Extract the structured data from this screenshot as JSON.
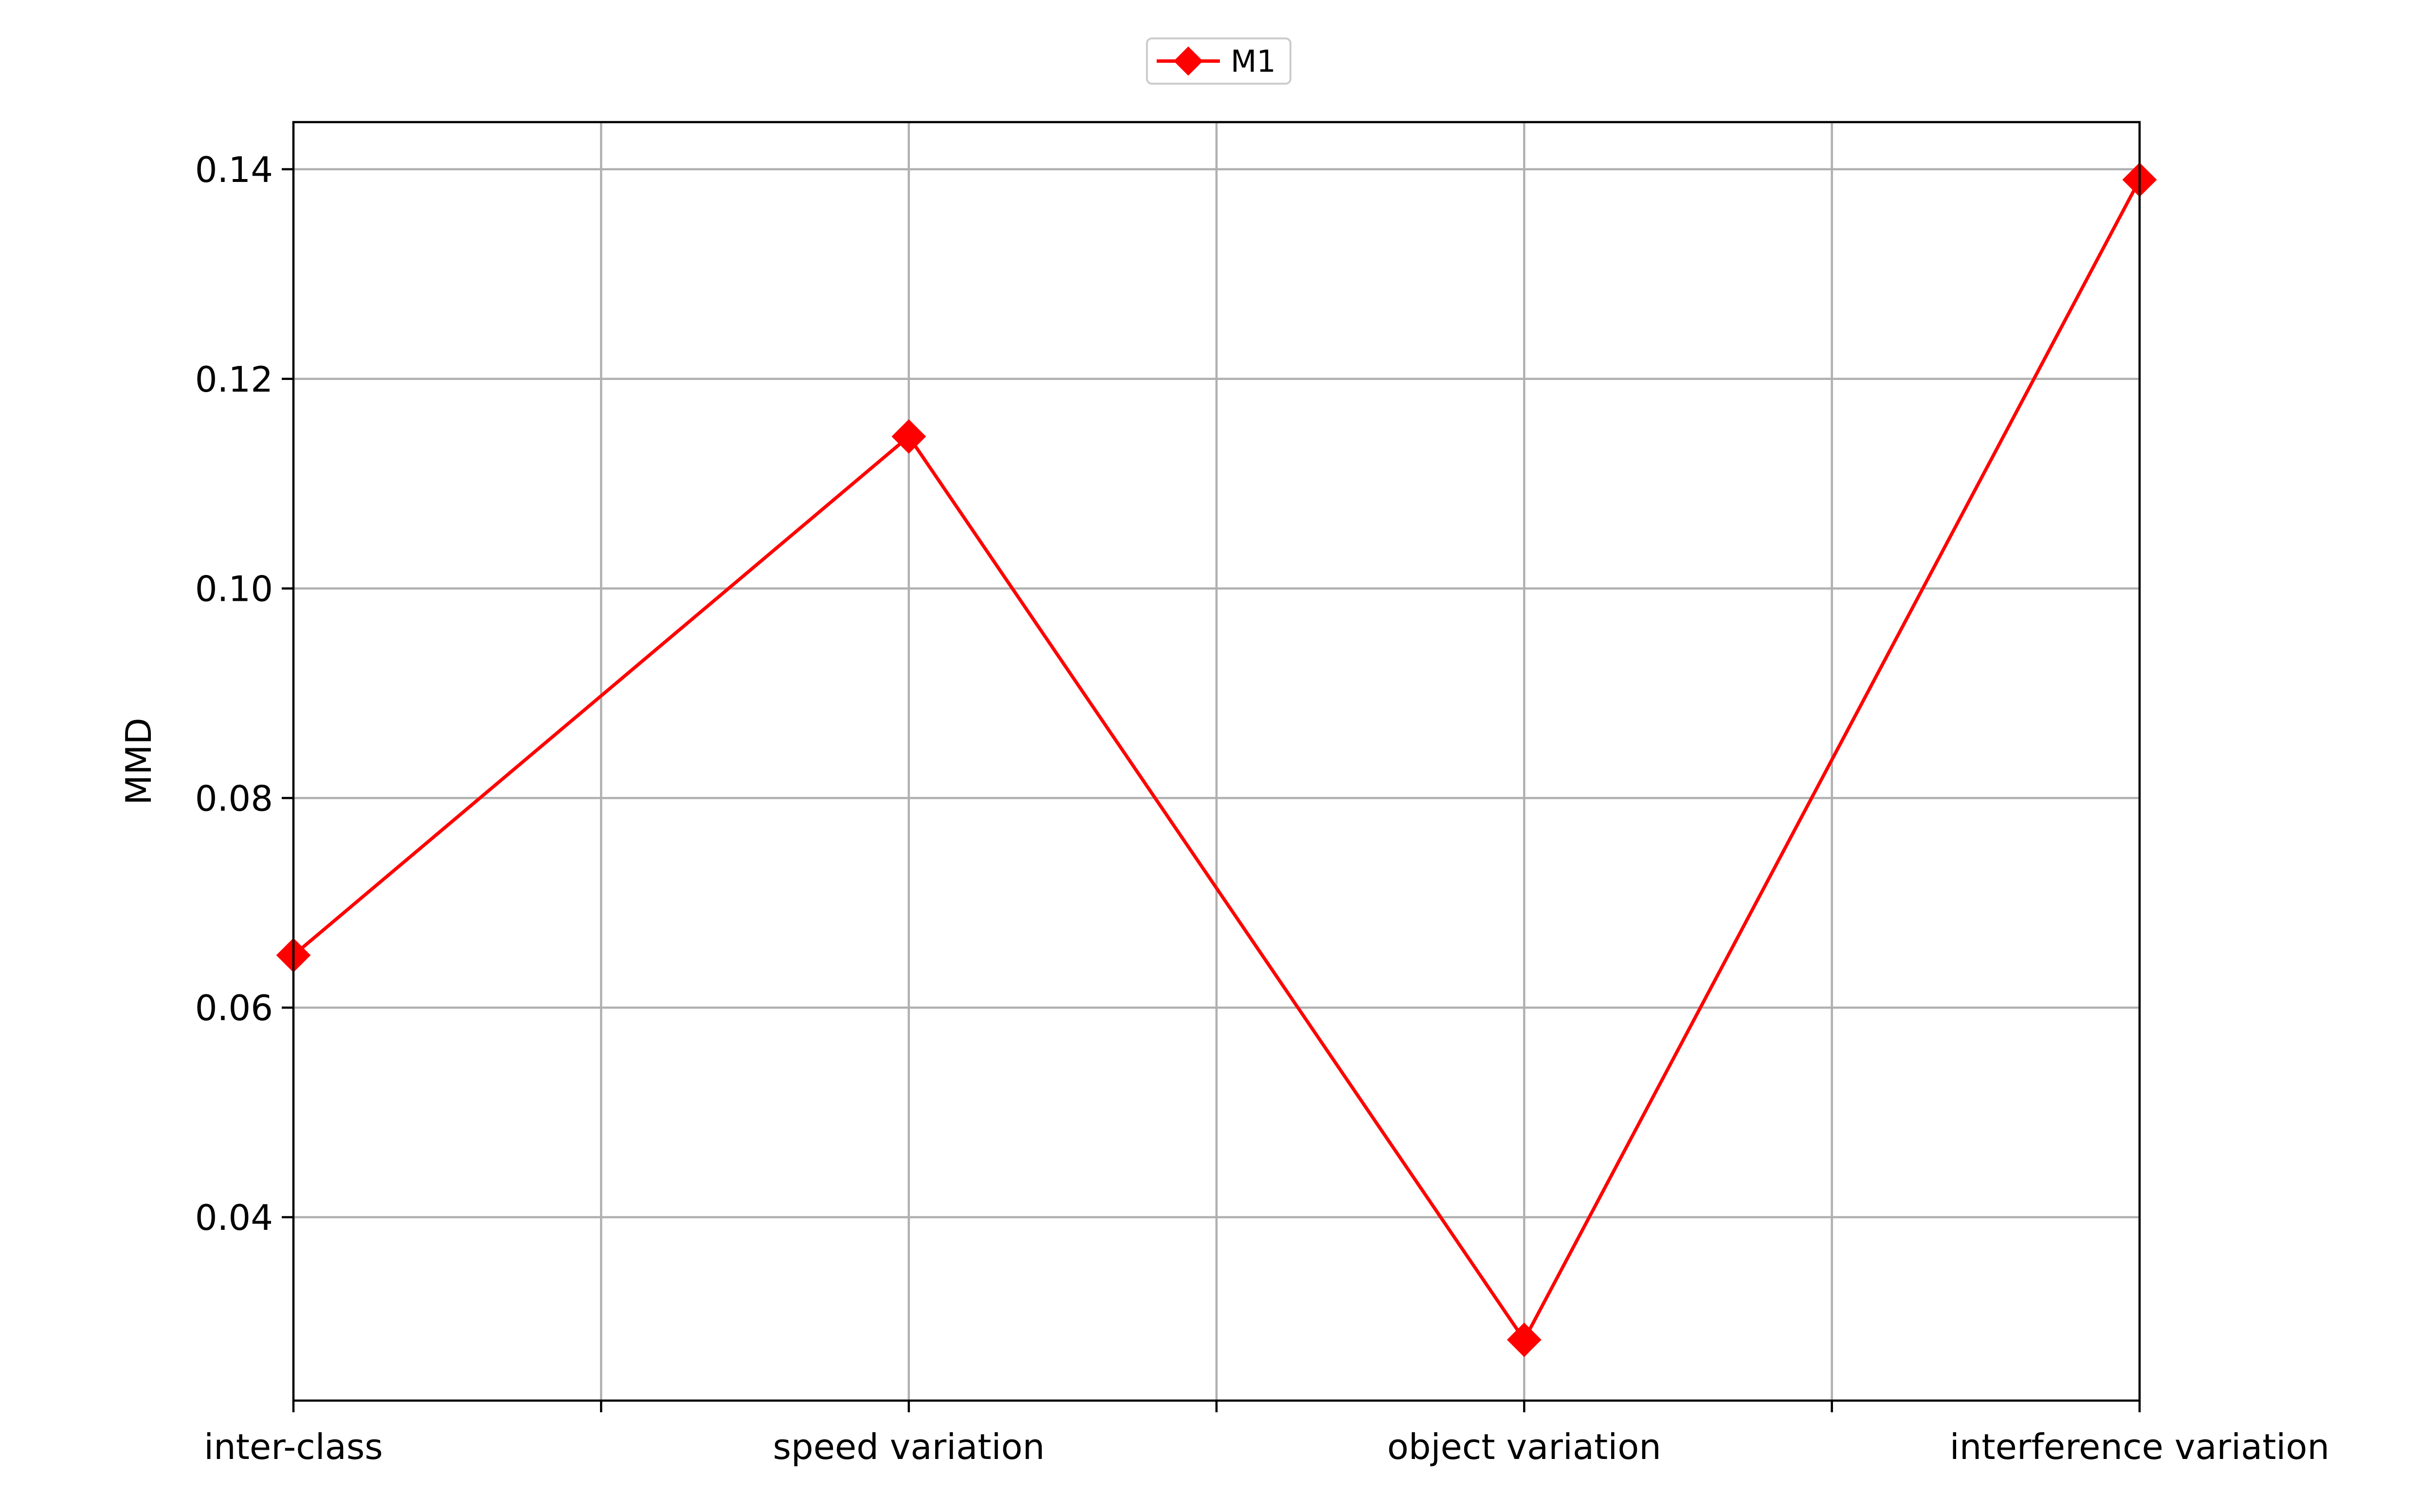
{
  "chart_data": {
    "type": "line",
    "categories": [
      "inter-class",
      "speed variation",
      "object variation",
      "interference variation"
    ],
    "x_minor_ticks": [
      0.5,
      1.5,
      2.5
    ],
    "series": [
      {
        "name": "M1",
        "values": [
          0.065,
          0.1145,
          0.0283,
          0.139
        ],
        "color": "#ff0000",
        "marker": "diamond"
      }
    ],
    "title": "",
    "xlabel": "",
    "ylabel": "MMD",
    "xlim": [
      0,
      3
    ],
    "ylim": [
      0.0225,
      0.1445
    ],
    "yticks": [
      0.04,
      0.06,
      0.08,
      0.1,
      0.12,
      0.14
    ],
    "ytick_labels": [
      "0.04",
      "0.06",
      "0.08",
      "0.10",
      "0.12",
      "0.14"
    ],
    "grid": true,
    "legend": {
      "position": "top-center",
      "entries": [
        "M1"
      ]
    }
  }
}
